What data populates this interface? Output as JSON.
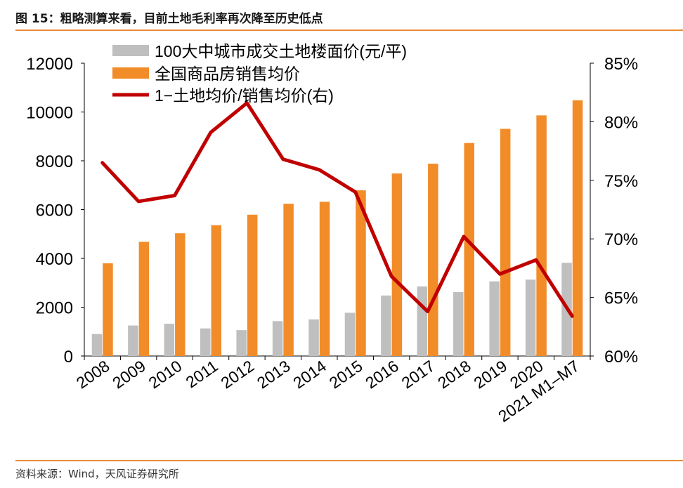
{
  "header": {
    "title": "图 15：粗略测算来看，目前土地毛利率再次降至历史低点"
  },
  "footer": {
    "source": "资料来源：Wind，天风证券研究所"
  },
  "colors": {
    "accent_rule": "#E98A3A",
    "bar_land": "#BFBFBF",
    "bar_house": "#F28C28",
    "line_margin": "#C00000"
  },
  "chart_data": {
    "type": "bar+line",
    "categories": [
      "2008",
      "2009",
      "2010",
      "2011",
      "2012",
      "2013",
      "2014",
      "2015",
      "2016",
      "2017",
      "2018",
      "2019",
      "2020",
      "2021 M1–M7"
    ],
    "y_left": {
      "min": 0,
      "max": 12000,
      "ticks": [
        "0",
        "2000",
        "4000",
        "6000",
        "8000",
        "10000",
        "12000"
      ]
    },
    "y_right": {
      "min": 0.6,
      "max": 0.85,
      "ticks": [
        "60%",
        "65%",
        "70%",
        "75%",
        "80%",
        "85%"
      ]
    },
    "series": [
      {
        "name": "100大中城市成交土地楼面价(元/平)",
        "kind": "bar",
        "axis": "left",
        "color": "#BFBFBF",
        "values": [
          900,
          1250,
          1320,
          1130,
          1060,
          1430,
          1500,
          1770,
          2480,
          2850,
          2620,
          3060,
          3130,
          3820
        ]
      },
      {
        "name": "全国商品房销售均价",
        "kind": "bar",
        "axis": "left",
        "color": "#F28C28",
        "values": [
          3800,
          4680,
          5030,
          5360,
          5790,
          6240,
          6320,
          6790,
          7480,
          7880,
          8730,
          9310,
          9860,
          10480
        ]
      },
      {
        "name": "1−土地均价/销售均价(右)",
        "kind": "line",
        "axis": "right",
        "color": "#C00000",
        "values": [
          0.765,
          0.732,
          0.737,
          0.791,
          0.816,
          0.768,
          0.759,
          0.74,
          0.668,
          0.638,
          0.702,
          0.67,
          0.682,
          0.634
        ]
      }
    ],
    "legend_position": "top-left",
    "grid": false
  }
}
